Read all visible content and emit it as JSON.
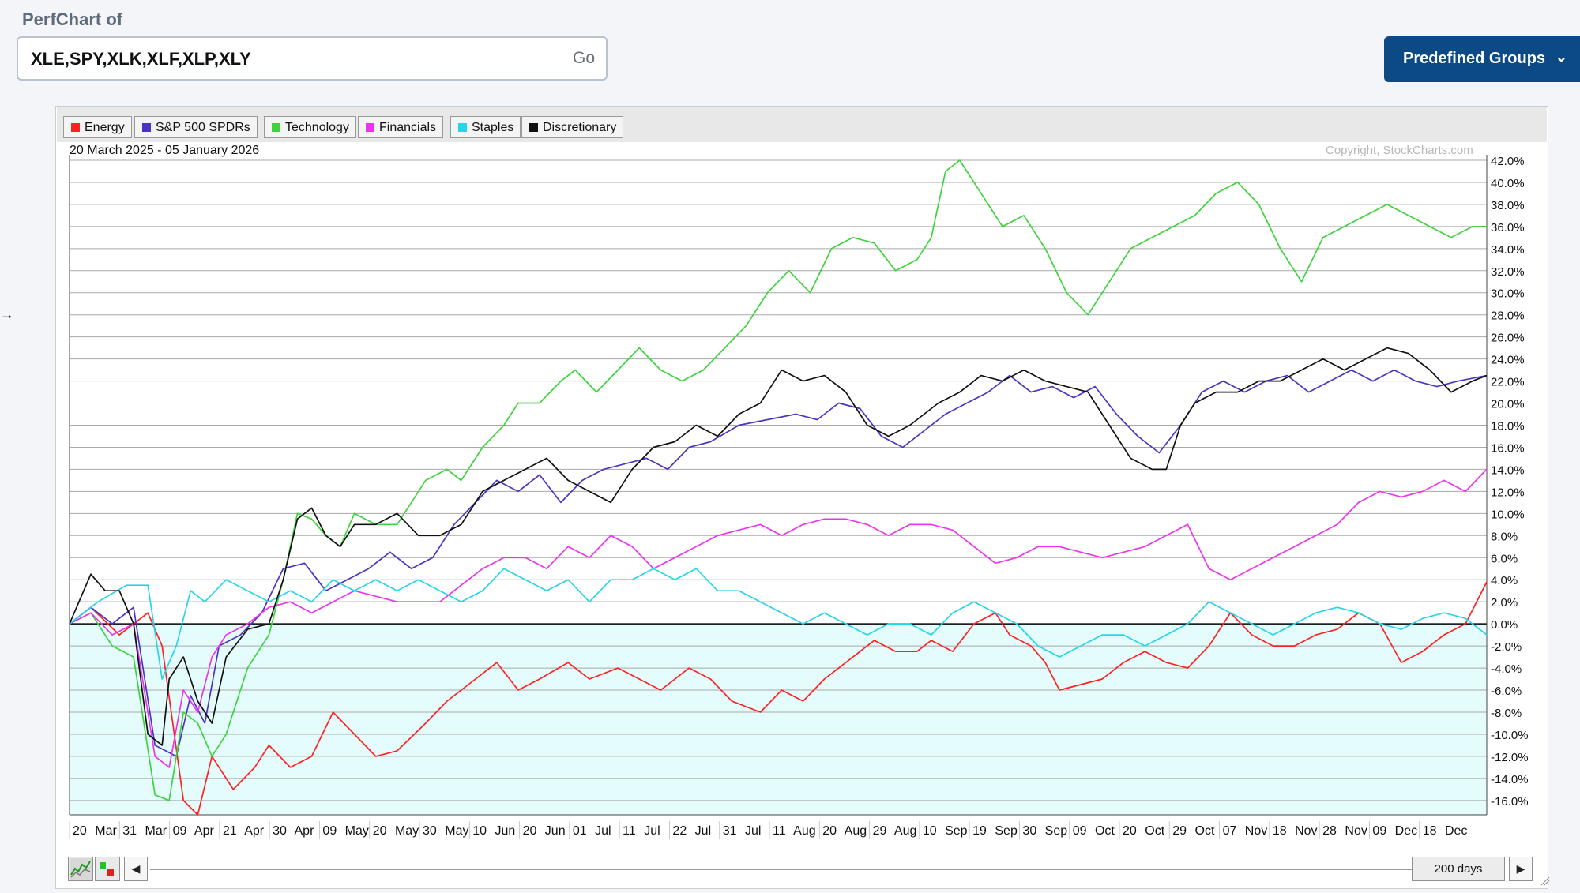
{
  "header": {
    "label": "PerfChart of",
    "symbols": "XLE,SPY,XLK,XLF,XLP,XLY",
    "go_label": "Go",
    "predefined_label": "Predefined Groups"
  },
  "chart_info": {
    "date_range": "20 March 2025 - 05 January 2026",
    "copyright": "Copyright, StockCharts.com"
  },
  "controls": {
    "days_label": "200 days"
  },
  "chart_data": {
    "type": "line",
    "title": "",
    "date_range": "20 March 2025 - 05 January 2026",
    "ylim": [
      -17.3,
      42.5
    ],
    "grid": true,
    "legend_position": "top-left",
    "x_ticks": [
      "20 Mar",
      "31 Mar",
      "09 Apr",
      "21 Apr",
      "30 Apr",
      "09 May",
      "20 May",
      "30 May",
      "10 Jun",
      "20 Jun",
      "01 Jul",
      "11 Jul",
      "22 Jul",
      "31 Jul",
      "11 Aug",
      "20 Aug",
      "29 Aug",
      "10 Sep",
      "19 Sep",
      "30 Sep",
      "09 Oct",
      "20 Oct",
      "29 Oct",
      "07 Nov",
      "18 Nov",
      "28 Nov",
      "09 Dec",
      "18 Dec"
    ],
    "y_ticks": [
      42,
      40,
      38,
      36,
      34,
      32,
      30,
      28,
      26,
      24,
      22,
      20,
      18,
      16,
      14,
      12,
      10,
      8,
      6,
      4,
      2,
      0,
      -2,
      -4,
      -6,
      -8,
      -10,
      -12,
      -14,
      -16
    ],
    "series": [
      {
        "name": "Energy",
        "color": "#ff2020",
        "x": [
          0,
          3,
          7,
          11,
          13,
          16,
          18,
          20,
          23,
          26,
          28,
          31,
          34,
          37,
          40,
          43,
          46,
          50,
          53,
          57,
          60,
          63,
          66,
          70,
          73,
          77,
          80,
          83,
          87,
          90,
          93,
          97,
          100,
          103,
          106,
          110,
          113,
          116,
          119,
          121,
          124,
          127,
          130,
          132,
          135,
          137,
          139,
          142,
          145,
          148,
          151,
          154,
          157,
          160,
          163,
          166,
          169,
          172,
          175,
          178,
          181,
          184,
          187,
          190,
          193,
          196,
          199
        ],
        "y": [
          0,
          1.5,
          -1,
          1,
          -2,
          -16,
          -17.3,
          -12,
          -15,
          -13,
          -11,
          -13,
          -12,
          -8,
          -10,
          -12,
          -11.5,
          -9,
          -7,
          -5,
          -3.5,
          -6,
          -5,
          -3.5,
          -5,
          -4,
          -5,
          -6,
          -4,
          -5,
          -7,
          -8,
          -6,
          -7,
          -5,
          -3,
          -1.5,
          -2.5,
          -2.5,
          -1.5,
          -2.5,
          0,
          1,
          -1,
          -2,
          -3.5,
          -6,
          -5.5,
          -5,
          -3.5,
          -2.5,
          -3.5,
          -4,
          -2,
          1,
          -1,
          -2,
          -2,
          -1,
          -0.5,
          1,
          0,
          -3.5,
          -2.5,
          -1,
          0,
          3.8
        ]
      },
      {
        "name": "S&P 500 SPDRs",
        "color": "#4d33c2",
        "x": [
          0,
          3,
          6,
          9,
          12,
          15,
          17,
          19,
          21,
          24,
          27,
          30,
          33,
          36,
          39,
          42,
          45,
          48,
          51,
          54,
          57,
          60,
          63,
          66,
          69,
          72,
          75,
          78,
          81,
          84,
          87,
          90,
          94,
          98,
          102,
          105,
          108,
          111,
          114,
          117,
          120,
          123,
          126,
          129,
          132,
          135,
          138,
          141,
          144,
          147,
          150,
          153,
          156,
          159,
          162,
          165,
          168,
          171,
          174,
          177,
          180,
          183,
          186,
          189,
          192,
          195,
          199
        ],
        "y": [
          0,
          1.5,
          0,
          1.5,
          -11,
          -12,
          -6.5,
          -9,
          -2,
          -1,
          1,
          5,
          5.5,
          3,
          4,
          5,
          6.5,
          5,
          6,
          9,
          11,
          13,
          12,
          13.5,
          11,
          13,
          14,
          14.5,
          15,
          14,
          16,
          16.5,
          18,
          18.5,
          19,
          18.5,
          20,
          19.5,
          17,
          16,
          17.5,
          19,
          20,
          21,
          22.5,
          21,
          21.5,
          20.5,
          21.5,
          19,
          17,
          15.5,
          18,
          21,
          22,
          21,
          22,
          22.5,
          21,
          22,
          23,
          22,
          23,
          22,
          21.5,
          22,
          22.5
        ]
      },
      {
        "name": "Technology",
        "color": "#3ed33e",
        "x": [
          0,
          3,
          6,
          9,
          12,
          14,
          16,
          18,
          20,
          22,
          25,
          28,
          30,
          32,
          34,
          36,
          38,
          40,
          43,
          46,
          48,
          50,
          53,
          55,
          58,
          61,
          63,
          66,
          69,
          71,
          74,
          77,
          80,
          83,
          86,
          89,
          92,
          95,
          98,
          101,
          104,
          107,
          110,
          113,
          116,
          119,
          121,
          123,
          125,
          128,
          131,
          134,
          137,
          140,
          143,
          146,
          149,
          152,
          155,
          158,
          161,
          164,
          167,
          170,
          173,
          176,
          179,
          182,
          185,
          188,
          191,
          194,
          197,
          199
        ],
        "y": [
          0,
          1,
          -2,
          -3,
          -15.5,
          -16,
          -8,
          -9,
          -12,
          -10,
          -4,
          -1,
          4,
          10,
          9.5,
          8,
          7,
          10,
          9,
          9,
          11,
          13,
          14,
          13,
          16,
          18,
          20,
          20,
          22,
          23,
          21,
          23,
          25,
          23,
          22,
          23,
          25,
          27,
          30,
          32,
          30,
          34,
          35,
          34.5,
          32,
          33,
          35,
          41,
          42,
          39,
          36,
          37,
          34,
          30,
          28,
          31,
          34,
          35,
          36,
          37,
          39,
          40,
          38,
          34,
          31,
          35,
          36,
          37,
          38,
          37,
          36,
          35,
          36,
          36
        ]
      },
      {
        "name": "Financials",
        "color": "#ee33ee",
        "x": [
          0,
          3,
          6,
          9,
          12,
          14,
          16,
          18,
          20,
          22,
          25,
          28,
          31,
          34,
          37,
          40,
          43,
          46,
          49,
          52,
          55,
          58,
          61,
          64,
          67,
          70,
          73,
          76,
          79,
          82,
          85,
          88,
          91,
          94,
          97,
          100,
          103,
          106,
          109,
          112,
          115,
          118,
          121,
          124,
          127,
          130,
          133,
          136,
          139,
          142,
          145,
          148,
          151,
          154,
          157,
          160,
          163,
          166,
          169,
          172,
          175,
          178,
          181,
          184,
          187,
          190,
          193,
          196,
          199
        ],
        "y": [
          0,
          1,
          -1,
          0,
          -12,
          -13,
          -6,
          -8,
          -3,
          -1,
          0,
          1.5,
          2,
          1,
          2,
          3,
          2.5,
          2,
          2,
          2,
          3.5,
          5,
          6,
          6,
          5,
          7,
          6,
          8,
          7,
          5,
          6,
          7,
          8,
          8.5,
          9,
          8,
          9,
          9.5,
          9.5,
          9,
          8,
          9,
          9,
          8.5,
          7,
          5.5,
          6,
          7,
          7,
          6.5,
          6,
          6.5,
          7,
          8,
          9,
          5,
          4,
          5,
          6,
          7,
          8,
          9,
          11,
          12,
          11.5,
          12,
          13,
          12,
          14
        ]
      },
      {
        "name": "Staples",
        "color": "#27d5e8",
        "x": [
          0,
          4,
          8,
          11,
          13,
          15,
          17,
          19,
          22,
          25,
          28,
          31,
          34,
          37,
          40,
          43,
          46,
          49,
          52,
          55,
          58,
          61,
          64,
          67,
          70,
          73,
          76,
          79,
          82,
          85,
          88,
          91,
          94,
          97,
          100,
          103,
          106,
          109,
          112,
          115,
          118,
          121,
          124,
          127,
          130,
          133,
          136,
          139,
          142,
          145,
          148,
          151,
          154,
          157,
          160,
          163,
          166,
          169,
          172,
          175,
          178,
          181,
          184,
          187,
          190,
          193,
          196,
          199
        ],
        "y": [
          0,
          2,
          3.5,
          3.5,
          -5,
          -2,
          3,
          2,
          4,
          3,
          2,
          3,
          2,
          4,
          3,
          4,
          3,
          4,
          3,
          2,
          3,
          5,
          4,
          3,
          4,
          2,
          4,
          4,
          5,
          4,
          5,
          3,
          3,
          2,
          1,
          0,
          1,
          0,
          -1,
          0,
          0,
          -1,
          1,
          2,
          1,
          0,
          -2,
          -3,
          -2,
          -1,
          -1,
          -2,
          -1,
          0,
          2,
          1,
          0,
          -1,
          0,
          1,
          1.5,
          1,
          0,
          -0.5,
          0.5,
          1,
          0.5,
          -1
        ]
      },
      {
        "name": "Discretionary",
        "color": "#111111",
        "x": [
          0,
          3,
          5,
          7,
          9,
          11,
          13,
          14,
          16,
          18,
          20,
          22,
          25,
          28,
          30,
          32,
          34,
          36,
          38,
          40,
          43,
          46,
          49,
          52,
          55,
          58,
          61,
          64,
          67,
          70,
          73,
          76,
          79,
          82,
          85,
          88,
          91,
          94,
          97,
          100,
          103,
          106,
          109,
          112,
          115,
          118,
          120,
          122,
          125,
          128,
          131,
          134,
          137,
          140,
          143,
          146,
          149,
          152,
          154,
          156,
          158,
          161,
          164,
          167,
          170,
          173,
          176,
          179,
          182,
          185,
          188,
          191,
          194,
          197,
          199
        ],
        "y": [
          0,
          4.5,
          3,
          3,
          0,
          -10,
          -11,
          -5,
          -3,
          -7,
          -9,
          -3,
          -0.5,
          0,
          4,
          9.5,
          10.5,
          8,
          7,
          9,
          9,
          10,
          8,
          8,
          9,
          12,
          13,
          14,
          15,
          13,
          12,
          11,
          14,
          16,
          16.5,
          18,
          17,
          19,
          20,
          23,
          22,
          22.5,
          21,
          18,
          17,
          18,
          19,
          20,
          21,
          22.5,
          22,
          23,
          22,
          21.5,
          21,
          18,
          15,
          14,
          14,
          18,
          20,
          21,
          21,
          22,
          22,
          23,
          24,
          23,
          24,
          25,
          24.5,
          23,
          21,
          22,
          22.5
        ]
      }
    ]
  }
}
